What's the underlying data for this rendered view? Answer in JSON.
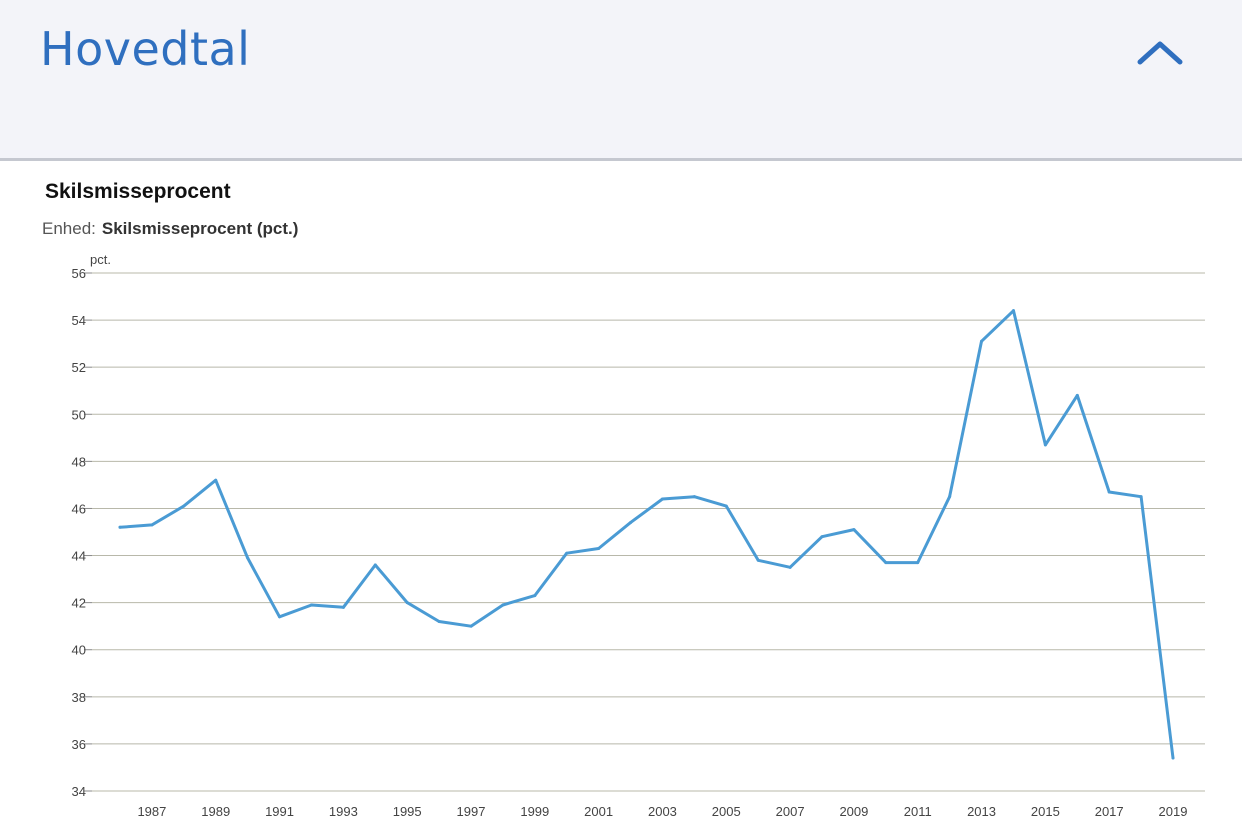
{
  "header": {
    "title": "Hovedtal",
    "collapse_icon": "chevron-up-icon",
    "accent_color": "#2f6fbf"
  },
  "chart_data": {
    "type": "line",
    "title": "Skilsmisseprocent",
    "unit_label": "Enhed:",
    "unit_value": "Skilsmisseprocent (pct.)",
    "ylabel": "pct.",
    "ylim": [
      34,
      56
    ],
    "yticks": [
      34,
      36,
      38,
      40,
      42,
      44,
      46,
      48,
      50,
      52,
      54,
      56
    ],
    "x": [
      1986,
      1987,
      1988,
      1989,
      1990,
      1991,
      1992,
      1993,
      1994,
      1995,
      1996,
      1997,
      1998,
      1999,
      2000,
      2001,
      2002,
      2003,
      2004,
      2005,
      2006,
      2007,
      2008,
      2009,
      2010,
      2011,
      2012,
      2013,
      2014,
      2015,
      2016,
      2017,
      2018,
      2019
    ],
    "xticks": [
      "1987",
      "1989",
      "1991",
      "1993",
      "1995",
      "1997",
      "1999",
      "2001",
      "2003",
      "2005",
      "2007",
      "2009",
      "2011",
      "2013",
      "2015",
      "2017",
      "2019"
    ],
    "series": [
      {
        "name": "Skilsmisseprocent",
        "color": "#4a9bd4",
        "values": [
          45.2,
          45.3,
          46.1,
          47.2,
          43.9,
          41.4,
          41.9,
          41.8,
          43.6,
          42.0,
          41.2,
          41.0,
          41.9,
          42.3,
          44.1,
          44.3,
          45.4,
          46.4,
          46.5,
          46.1,
          43.8,
          43.5,
          44.8,
          45.1,
          43.7,
          43.7,
          46.5,
          53.1,
          54.4,
          48.7,
          50.8,
          46.7,
          46.5,
          35.4
        ]
      }
    ],
    "grid": true
  }
}
